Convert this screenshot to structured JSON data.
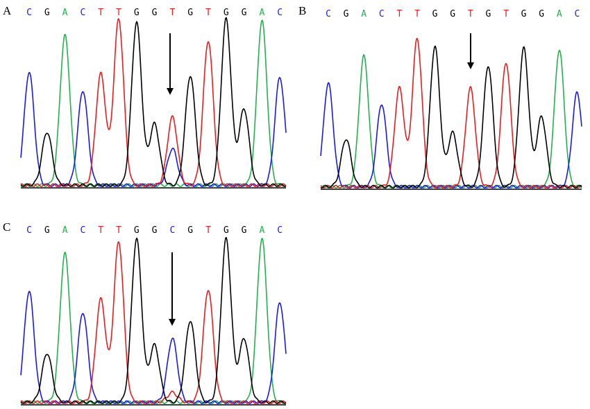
{
  "colors": {
    "A": "#22b14c",
    "C": "#1a1ae6",
    "G": "#000000",
    "T": "#e61e1e"
  },
  "panels": [
    {
      "label": "A",
      "bases": [
        "C",
        "G",
        "A",
        "C",
        "T",
        "T",
        "G",
        "G",
        "T",
        "G",
        "T",
        "G",
        "G",
        "A",
        "C"
      ],
      "peaks": [
        0.68,
        0.32,
        0.9,
        0.57,
        0.67,
        1.0,
        0.98,
        0.37,
        0.41,
        0.66,
        0.87,
        1.0,
        0.46,
        0.99,
        0.65
      ],
      "secondary": [
        {
          "index": 8,
          "base": "C",
          "height": 0.22
        }
      ],
      "arrow_index": 8
    },
    {
      "label": "B",
      "bases": [
        "C",
        "G",
        "A",
        "C",
        "T",
        "T",
        "G",
        "G",
        "T",
        "G",
        "T",
        "G",
        "G",
        "A",
        "C"
      ],
      "peaks": [
        0.65,
        0.3,
        0.82,
        0.52,
        0.62,
        0.93,
        0.88,
        0.34,
        0.62,
        0.76,
        0.78,
        0.87,
        0.44,
        0.86,
        0.59
      ],
      "secondary": [],
      "arrow_index": 8
    },
    {
      "label": "C",
      "bases": [
        "C",
        "G",
        "A",
        "C",
        "T",
        "T",
        "G",
        "G",
        "C",
        "G",
        "T",
        "G",
        "G",
        "A",
        "C"
      ],
      "peaks": [
        0.68,
        0.3,
        0.91,
        0.55,
        0.63,
        0.98,
        1.0,
        0.35,
        0.39,
        0.5,
        0.69,
        1.0,
        0.39,
        1.0,
        0.61
      ],
      "secondary": [
        {
          "index": 8,
          "base": "T",
          "height": 0.06
        }
      ],
      "arrow_index": 8
    }
  ]
}
